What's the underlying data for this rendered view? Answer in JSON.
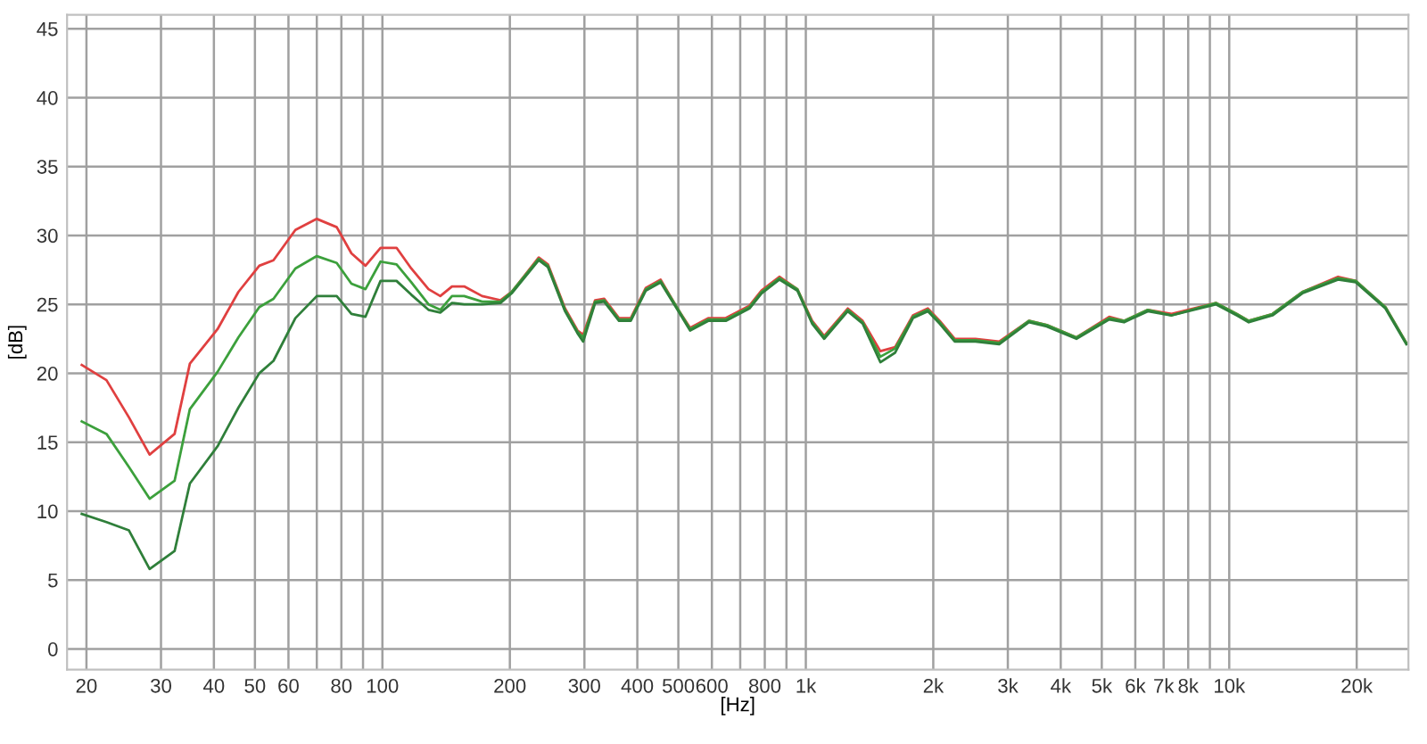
{
  "chart_data": {
    "type": "line",
    "xlabel": "[Hz]",
    "ylabel": "[dB]",
    "log": "x",
    "xlim": [
      18,
      26500
    ],
    "ylim": [
      -1.5,
      46
    ],
    "xticks": [
      20,
      30,
      40,
      50,
      60,
      {
        "value": 70,
        "label": null
      },
      80,
      {
        "value": 90,
        "label": null
      },
      100,
      200,
      300,
      400,
      500,
      600,
      {
        "value": 700,
        "label": null
      },
      800,
      {
        "value": 900,
        "label": null
      },
      {
        "value": 1000,
        "label": "1k"
      },
      {
        "value": 2000,
        "label": "2k"
      },
      {
        "value": 3000,
        "label": "3k"
      },
      {
        "value": 4000,
        "label": "4k"
      },
      {
        "value": 5000,
        "label": "5k"
      },
      {
        "value": 6000,
        "label": "6k"
      },
      {
        "value": 7000,
        "label": "7k"
      },
      {
        "value": 8000,
        "label": "8k"
      },
      {
        "value": 9000,
        "label": null
      },
      {
        "value": 10000,
        "label": "10k"
      },
      {
        "value": 20000,
        "label": "20k"
      }
    ],
    "yticks": [
      0,
      5,
      10,
      15,
      20,
      25,
      30,
      35,
      40,
      45
    ],
    "grid": true,
    "legend": false,
    "marker": "none",
    "line_style": "solid",
    "x": [
      19.5,
      22.3,
      25.2,
      28.2,
      32.3,
      35.1,
      40.8,
      45.7,
      51.2,
      55.3,
      62.3,
      70,
      78,
      84.5,
      91.2,
      99,
      108,
      117,
      128.5,
      137,
      146,
      156,
      172,
      190,
      202,
      234,
      246,
      270,
      289,
      298,
      318,
      334,
      362,
      386,
      419,
      454,
      500,
      533,
      588,
      647,
      736,
      786,
      866,
      955,
      1035,
      1105,
      1256,
      1362,
      1500,
      1626,
      1791,
      1941,
      2071,
      2248,
      2515,
      2862,
      3365,
      3707,
      4356,
      5207,
      5643,
      6423,
      7310,
      9311,
      10420,
      11120,
      12650,
      14880,
      18070,
      19900,
      23380,
      26200
    ],
    "series": [
      {
        "color": "#e04040",
        "values": [
          20.6,
          19.5,
          16.8,
          14.1,
          15.6,
          20.7,
          23.2,
          25.9,
          27.8,
          28.2,
          30.4,
          31.2,
          30.6,
          28.7,
          27.8,
          29.1,
          29.1,
          27.6,
          26.1,
          25.6,
          26.3,
          26.3,
          25.6,
          25.3,
          25.9,
          28.4,
          27.9,
          24.7,
          23.1,
          22.8,
          25.3,
          25.4,
          24.0,
          24.0,
          26.2,
          26.8,
          24.6,
          23.3,
          24.0,
          24.0,
          24.9,
          26.0,
          27.0,
          26.1,
          23.8,
          22.7,
          24.7,
          23.8,
          21.6,
          21.9,
          24.2,
          24.7,
          23.8,
          22.5,
          22.5,
          22.3,
          23.8,
          23.5,
          22.6,
          24.1,
          23.8,
          24.6,
          24.3,
          25.1,
          24.3,
          23.8,
          24.3,
          25.9,
          27.0,
          26.7,
          24.8,
          22.2
        ]
      },
      {
        "color": "#3ca03c",
        "values": [
          16.5,
          15.6,
          13.2,
          10.9,
          12.2,
          17.4,
          20.1,
          22.6,
          24.8,
          25.4,
          27.6,
          28.5,
          28.0,
          26.5,
          26.1,
          28.1,
          27.9,
          26.6,
          25.0,
          24.6,
          25.6,
          25.6,
          25.2,
          25.2,
          25.9,
          28.3,
          27.8,
          24.6,
          23.0,
          22.6,
          25.2,
          25.3,
          23.9,
          23.9,
          26.1,
          26.7,
          24.6,
          23.2,
          23.9,
          23.9,
          24.8,
          25.9,
          26.9,
          26.1,
          23.7,
          22.6,
          24.6,
          23.7,
          21.2,
          21.8,
          24.1,
          24.6,
          23.7,
          22.4,
          22.4,
          22.2,
          23.8,
          23.5,
          22.6,
          24.0,
          23.8,
          24.6,
          24.2,
          25.1,
          24.3,
          23.8,
          24.3,
          25.9,
          26.9,
          26.7,
          24.8,
          22.2
        ]
      },
      {
        "color": "#2f7f3a",
        "values": [
          9.8,
          9.2,
          8.6,
          5.8,
          7.1,
          12.0,
          14.7,
          17.5,
          20.0,
          20.9,
          24.0,
          25.6,
          25.6,
          24.3,
          24.1,
          26.7,
          26.7,
          25.7,
          24.6,
          24.4,
          25.1,
          25.0,
          25.0,
          25.1,
          25.8,
          28.2,
          27.7,
          24.5,
          22.9,
          22.3,
          25.1,
          25.2,
          23.8,
          23.8,
          26.0,
          26.6,
          24.5,
          23.1,
          23.8,
          23.8,
          24.7,
          25.8,
          26.8,
          26.0,
          23.6,
          22.5,
          24.5,
          23.6,
          20.8,
          21.5,
          24.0,
          24.5,
          23.6,
          22.3,
          22.3,
          22.1,
          23.7,
          23.4,
          22.5,
          23.9,
          23.7,
          24.5,
          24.2,
          25.0,
          24.2,
          23.7,
          24.2,
          25.8,
          26.8,
          26.6,
          24.7,
          22.1
        ]
      }
    ]
  }
}
